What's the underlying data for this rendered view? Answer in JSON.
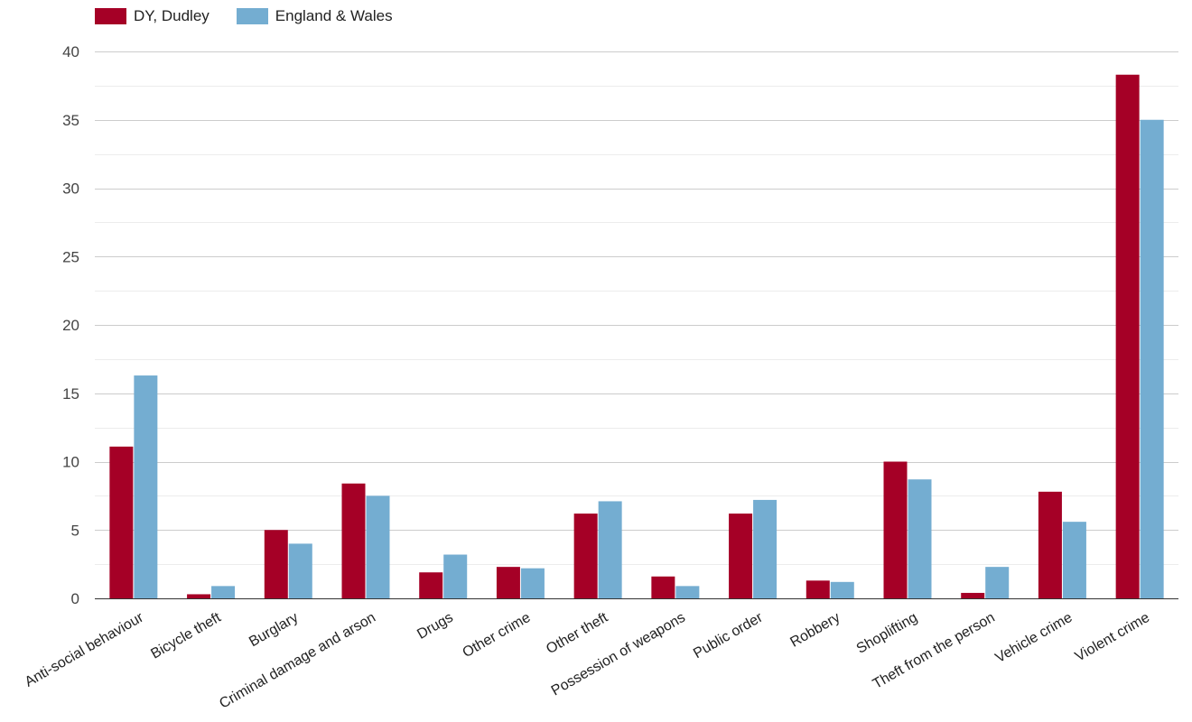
{
  "chart_data": {
    "type": "bar",
    "categories": [
      "Anti-social behaviour",
      "Bicycle theft",
      "Burglary",
      "Criminal damage and arson",
      "Drugs",
      "Other crime",
      "Other theft",
      "Possession of weapons",
      "Public order",
      "Robbery",
      "Shoplifting",
      "Theft from the person",
      "Vehicle crime",
      "Violent crime"
    ],
    "series": [
      {
        "name": "DY, Dudley",
        "color": "#a50026",
        "values": [
          11.1,
          0.3,
          5.0,
          8.4,
          1.9,
          2.3,
          6.2,
          1.6,
          6.2,
          1.3,
          10.0,
          0.4,
          7.8,
          38.3
        ]
      },
      {
        "name": "England & Wales",
        "color": "#74add1",
        "values": [
          16.3,
          0.9,
          4.0,
          7.5,
          3.2,
          2.2,
          7.1,
          0.9,
          7.2,
          1.2,
          8.7,
          2.3,
          5.6,
          35.0
        ]
      }
    ],
    "y_ticks": [
      "0",
      "5",
      "10",
      "15",
      "20",
      "25",
      "30",
      "35",
      "40"
    ],
    "ylim": [
      0,
      40
    ],
    "grid": true,
    "legend_position": "top-left",
    "title": "",
    "xlabel": "",
    "ylabel": ""
  }
}
